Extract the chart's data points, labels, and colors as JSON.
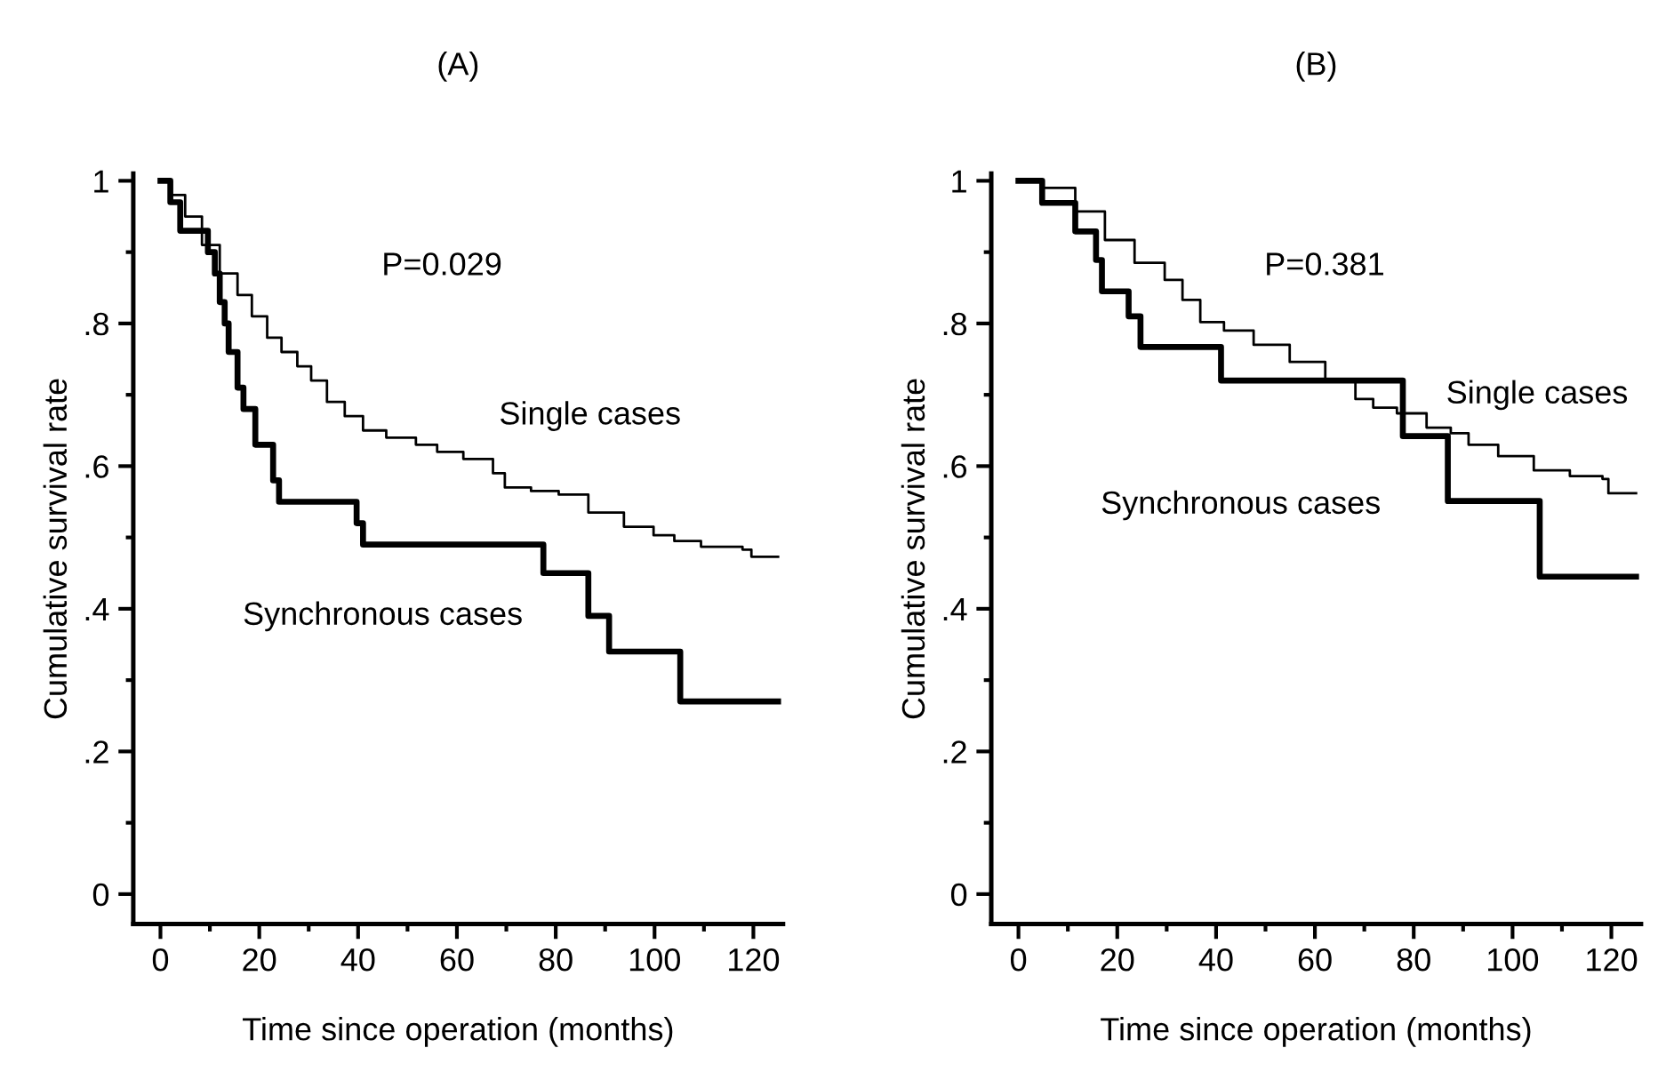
{
  "chart_data": [
    {
      "type": "step",
      "title": "(A)",
      "xlabel": "Time since operation (months)",
      "ylabel": "Cumulative survival rate",
      "xlim": [
        -5.5,
        126
      ],
      "ylim": [
        -0.042,
        1.01
      ],
      "xticks": [
        0,
        20,
        40,
        60,
        80,
        100,
        120
      ],
      "yticks": [
        {
          "value": 0,
          "label": "0"
        },
        {
          "value": 0.2,
          "label": ".2"
        },
        {
          "value": 0.4,
          "label": ".4"
        },
        {
          "value": 0.6,
          "label": ".6"
        },
        {
          "value": 0.8,
          "label": ".8"
        },
        {
          "value": 1,
          "label": "1"
        }
      ],
      "grid": false,
      "legend": false,
      "series": [
        {
          "name": "Single cases",
          "color": "#000000",
          "x": [
            0,
            2,
            5,
            8.4,
            12,
            15.6,
            18.5,
            21.6,
            24.5,
            27.7,
            30.5,
            33.7,
            37.3,
            41,
            45.7,
            51.7,
            56,
            61.3,
            67.3,
            69.7,
            75,
            80.6,
            86.6,
            93.8,
            99.8,
            104,
            109.4,
            117.8,
            119.6,
            125
          ],
          "values": [
            1,
            0.98,
            0.95,
            0.91,
            0.87,
            0.84,
            0.81,
            0.78,
            0.76,
            0.74,
            0.72,
            0.69,
            0.67,
            0.65,
            0.64,
            0.63,
            0.62,
            0.61,
            0.59,
            0.57,
            0.565,
            0.56,
            0.535,
            0.515,
            0.503,
            0.495,
            0.487,
            0.483,
            0.473,
            0.473
          ]
        },
        {
          "name": "Synchronous cases",
          "color": "#000000",
          "x": [
            0,
            2,
            4,
            9.6,
            11,
            12,
            13,
            13.8,
            15.6,
            16.8,
            19.2,
            22.8,
            24,
            39.7,
            41,
            77.5,
            86.6,
            90.8,
            105.2,
            125
          ],
          "values": [
            1,
            0.97,
            0.93,
            0.9,
            0.87,
            0.83,
            0.8,
            0.76,
            0.71,
            0.68,
            0.63,
            0.58,
            0.55,
            0.52,
            0.49,
            0.45,
            0.39,
            0.34,
            0.27,
            0.27
          ]
        }
      ],
      "annotations": [
        "P=0.029"
      ]
    },
    {
      "type": "step",
      "title": "(B)",
      "xlabel": "Time since operation (months)",
      "ylabel": "Cumulative survival rate",
      "xlim": [
        -5.5,
        126
      ],
      "ylim": [
        -0.042,
        1.01
      ],
      "xticks": [
        0,
        20,
        40,
        60,
        80,
        100,
        120
      ],
      "yticks": [
        {
          "value": 0,
          "label": "0"
        },
        {
          "value": 0.2,
          "label": ".2"
        },
        {
          "value": 0.4,
          "label": ".4"
        },
        {
          "value": 0.6,
          "label": ".6"
        },
        {
          "value": 0.8,
          "label": ".8"
        },
        {
          "value": 1,
          "label": "1"
        }
      ],
      "grid": false,
      "legend": false,
      "series": [
        {
          "name": "Single cases",
          "color": "#000000",
          "x": [
            0,
            5,
            11.5,
            17.5,
            23.5,
            29.6,
            33.2,
            36.8,
            41.6,
            47.6,
            54.9,
            62.1,
            68.2,
            71.8,
            76.6,
            82.6,
            87.5,
            91.1,
            97.1,
            104.3,
            111.6,
            118.2,
            119.4,
            125
          ],
          "values": [
            1,
            0.99,
            0.957,
            0.917,
            0.885,
            0.861,
            0.833,
            0.802,
            0.79,
            0.77,
            0.746,
            0.722,
            0.694,
            0.682,
            0.674,
            0.654,
            0.646,
            0.63,
            0.614,
            0.594,
            0.586,
            0.582,
            0.562,
            0.562
          ]
        },
        {
          "name": "Synchronous cases",
          "color": "#000000",
          "x": [
            0,
            4.8,
            11.5,
            15.7,
            16.9,
            22.3,
            24.7,
            41,
            77.8,
            86.9,
            105.5,
            125
          ],
          "values": [
            1,
            0.969,
            0.929,
            0.889,
            0.845,
            0.81,
            0.767,
            0.72,
            0.642,
            0.551,
            0.445,
            0.445
          ]
        }
      ],
      "annotations": [
        "P=0.381"
      ]
    }
  ]
}
